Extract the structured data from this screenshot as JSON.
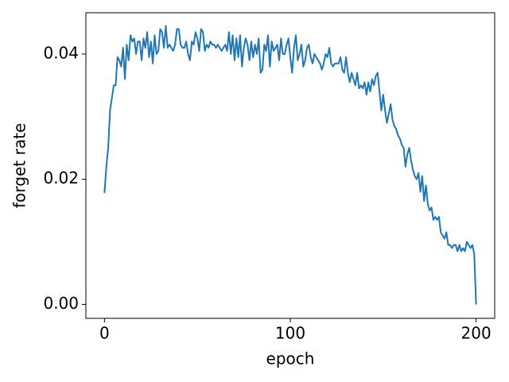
{
  "chart_data": {
    "type": "line",
    "xlabel": "epoch",
    "ylabel": "forget rate",
    "color": "#1f77b4",
    "x": [
      0,
      1,
      2,
      3,
      4,
      5,
      6,
      7,
      8,
      9,
      10,
      11,
      12,
      13,
      14,
      15,
      16,
      17,
      18,
      19,
      20,
      21,
      22,
      23,
      24,
      25,
      26,
      27,
      28,
      29,
      30,
      31,
      32,
      33,
      34,
      35,
      36,
      37,
      38,
      39,
      40,
      41,
      42,
      43,
      44,
      45,
      46,
      47,
      48,
      49,
      50,
      51,
      52,
      53,
      54,
      55,
      56,
      57,
      58,
      59,
      60,
      61,
      62,
      63,
      64,
      65,
      66,
      67,
      68,
      69,
      70,
      71,
      72,
      73,
      74,
      75,
      76,
      77,
      78,
      79,
      80,
      81,
      82,
      83,
      84,
      85,
      86,
      87,
      88,
      89,
      90,
      91,
      92,
      93,
      94,
      95,
      96,
      97,
      98,
      99,
      100,
      101,
      102,
      103,
      104,
      105,
      106,
      107,
      108,
      109,
      110,
      111,
      112,
      113,
      114,
      115,
      116,
      117,
      118,
      119,
      120,
      121,
      122,
      123,
      124,
      125,
      126,
      127,
      128,
      129,
      130,
      131,
      132,
      133,
      134,
      135,
      136,
      137,
      138,
      139,
      140,
      141,
      142,
      143,
      144,
      145,
      146,
      147,
      148,
      149,
      150,
      151,
      152,
      153,
      154,
      155,
      156,
      157,
      158,
      159,
      160,
      161,
      162,
      163,
      164,
      165,
      166,
      167,
      168,
      169,
      170,
      171,
      172,
      173,
      174,
      175,
      176,
      177,
      178,
      179,
      180,
      181,
      182,
      183,
      184,
      185,
      186,
      187,
      188,
      189,
      190,
      191,
      192,
      193,
      194,
      195,
      196,
      197,
      198,
      199,
      200
    ],
    "values": [
      0.0178,
      0.022,
      0.025,
      0.031,
      0.033,
      0.035,
      0.035,
      0.0395,
      0.039,
      0.038,
      0.041,
      0.036,
      0.0415,
      0.039,
      0.043,
      0.042,
      0.0425,
      0.04,
      0.042,
      0.042,
      0.039,
      0.0425,
      0.041,
      0.0435,
      0.0395,
      0.042,
      0.0385,
      0.043,
      0.04,
      0.0405,
      0.044,
      0.0435,
      0.041,
      0.0445,
      0.041,
      0.0415,
      0.041,
      0.0405,
      0.0415,
      0.044,
      0.044,
      0.0415,
      0.041,
      0.041,
      0.042,
      0.04,
      0.039,
      0.042,
      0.0415,
      0.0435,
      0.0425,
      0.0405,
      0.044,
      0.0435,
      0.0405,
      0.0415,
      0.041,
      0.042,
      0.0415,
      0.0415,
      0.041,
      0.0415,
      0.041,
      0.0405,
      0.041,
      0.0415,
      0.0405,
      0.0435,
      0.04,
      0.043,
      0.039,
      0.0425,
      0.0395,
      0.043,
      0.038,
      0.041,
      0.0425,
      0.0415,
      0.039,
      0.042,
      0.0395,
      0.0415,
      0.04,
      0.0425,
      0.037,
      0.0375,
      0.0415,
      0.0405,
      0.043,
      0.038,
      0.042,
      0.0405,
      0.041,
      0.0415,
      0.039,
      0.0425,
      0.04,
      0.04,
      0.0415,
      0.0425,
      0.0395,
      0.037,
      0.041,
      0.043,
      0.039,
      0.04,
      0.0415,
      0.038,
      0.039,
      0.041,
      0.0415,
      0.0395,
      0.0385,
      0.04,
      0.0395,
      0.039,
      0.0385,
      0.0375,
      0.0385,
      0.04,
      0.0395,
      0.041,
      0.0385,
      0.038,
      0.0385,
      0.0385,
      0.0385,
      0.0395,
      0.0375,
      0.037,
      0.0395,
      0.037,
      0.0355,
      0.037,
      0.036,
      0.035,
      0.037,
      0.0345,
      0.035,
      0.0345,
      0.0355,
      0.0335,
      0.0355,
      0.034,
      0.036,
      0.035,
      0.0365,
      0.037,
      0.034,
      0.031,
      0.0335,
      0.031,
      0.029,
      0.0305,
      0.032,
      0.0295,
      0.0285,
      0.028,
      0.027,
      0.0265,
      0.0255,
      0.025,
      0.022,
      0.024,
      0.025,
      0.023,
      0.0215,
      0.0205,
      0.02,
      0.021,
      0.018,
      0.0205,
      0.0165,
      0.019,
      0.016,
      0.015,
      0.0155,
      0.0135,
      0.014,
      0.0135,
      0.014,
      0.0115,
      0.011,
      0.0105,
      0.0115,
      0.0095,
      0.0095,
      0.009,
      0.0095,
      0.0095,
      0.0085,
      0.0095,
      0.0085,
      0.009,
      0.0085,
      0.01,
      0.0095,
      0.009,
      0.0095,
      0.008,
      0.0
    ],
    "xlim": [
      -10,
      210
    ],
    "xticks": [
      0,
      100,
      200
    ],
    "ylim": [
      -0.00222,
      0.0466
    ],
    "yticks": [
      {
        "value": 0,
        "label": "0.00"
      },
      {
        "value": 0.02,
        "label": "0.02"
      },
      {
        "value": 0.04,
        "label": "0.04"
      }
    ]
  }
}
